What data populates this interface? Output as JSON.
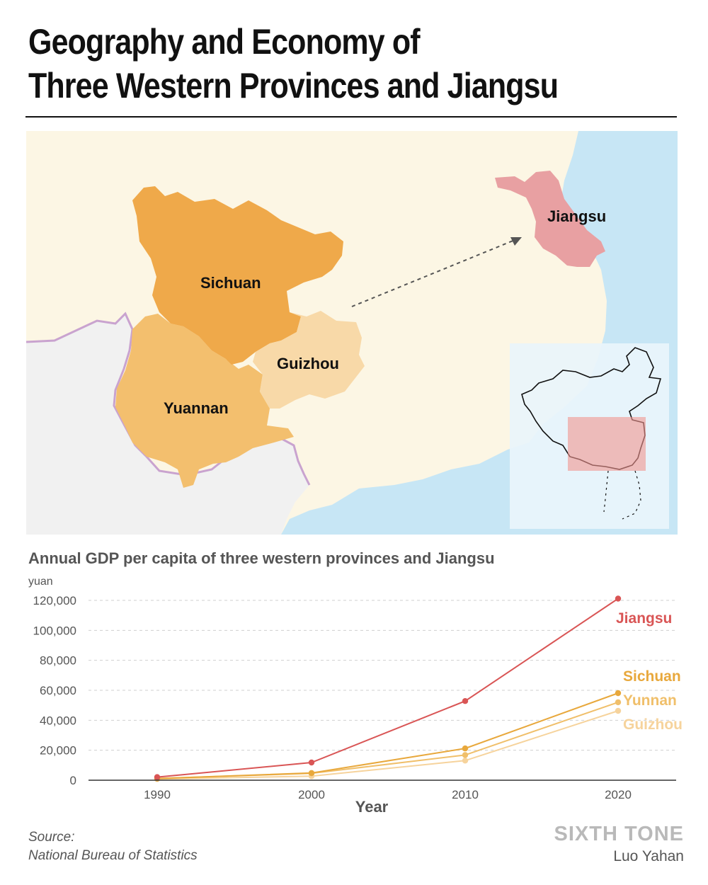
{
  "header": {
    "title_line1": "Geography and Economy of",
    "title_line2": "Three Western Provinces and Jiangsu"
  },
  "map": {
    "labels": {
      "sichuan": "Sichuan",
      "guizhou": "Guizhou",
      "yunnan": "Yuannan",
      "jiangsu": "Jiangsu"
    },
    "colors": {
      "land": "#fcf6e4",
      "sea": "#c7e6f5",
      "foreign": "#f1f1f1",
      "sichuan": "#efa94a",
      "yunnan": "#f3bf6e",
      "guizhou": "#f8d9a8",
      "jiangsu": "#e8a0a2",
      "border": "#c9a3cf"
    }
  },
  "chart_data": {
    "type": "line",
    "title": "Annual GDP per capita of three western provinces and Jiangsu",
    "unit_label": "yuan",
    "xlabel": "Year",
    "ylabel": "",
    "x": [
      1990,
      2000,
      2010,
      2020
    ],
    "x_tick_labels": [
      "1990",
      "2000",
      "2010",
      "2020"
    ],
    "y_ticks": [
      0,
      20000,
      40000,
      60000,
      80000,
      100000,
      120000
    ],
    "y_tick_labels": [
      "0",
      "20,000",
      "40,000",
      "60,000",
      "80,000",
      "100,000",
      "120,000"
    ],
    "ylim": [
      0,
      120000
    ],
    "grid": true,
    "series": [
      {
        "name": "Jiangsu",
        "color": "#d95555",
        "values": [
          2100,
          11800,
          52800,
          121200
        ]
      },
      {
        "name": "Sichuan",
        "color": "#e8a83c",
        "values": [
          1100,
          4800,
          21200,
          58100
        ]
      },
      {
        "name": "Yunnan",
        "color": "#f0bf6a",
        "values": [
          1200,
          4600,
          16800,
          52000
        ]
      },
      {
        "name": "Guizhou",
        "color": "#f6d39c",
        "values": [
          800,
          2700,
          13100,
          46300
        ]
      }
    ]
  },
  "footer": {
    "source_line1": "Source:",
    "source_line2": "National Bureau of Statistics",
    "brand": "SIXTH TONE",
    "author": "Luo Yahan"
  }
}
